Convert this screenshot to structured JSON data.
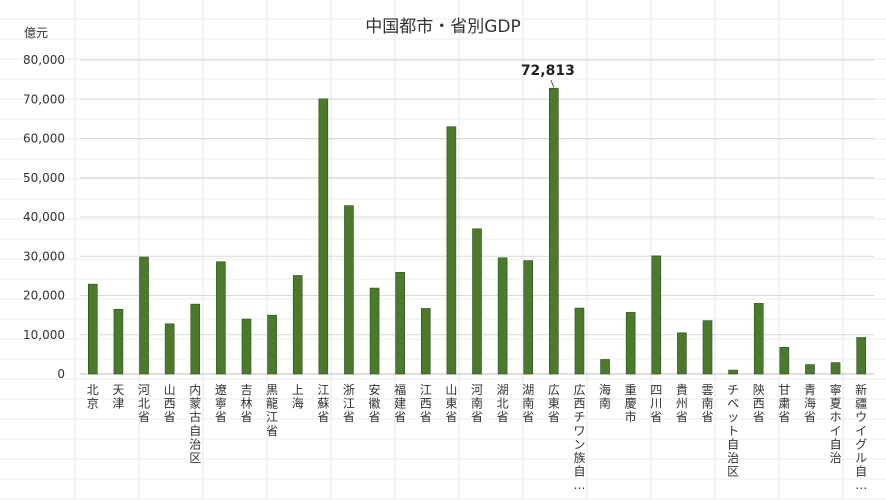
{
  "chart_data": {
    "type": "bar",
    "title": "中国都市・省別GDP",
    "unit_label": "億元",
    "ylim": [
      0,
      80000
    ],
    "yticks": [
      "0",
      "10,000",
      "20,000",
      "30,000",
      "40,000",
      "50,000",
      "60,000",
      "70,000",
      "80,000"
    ],
    "grid": true,
    "legend": "none",
    "bar_color": "#4c7a2c",
    "bar_edge_color": "#2f4f1a",
    "categories": [
      "北京",
      "天津",
      "河北省",
      "山西省",
      "内蒙古自治区",
      "遼寧省",
      "吉林省",
      "黒龍江省",
      "上海",
      "江蘇省",
      "浙江省",
      "安徽省",
      "福建省",
      "江西省",
      "山東省",
      "河南省",
      "湖北省",
      "湖南省",
      "広東省",
      "広西チワン族自…",
      "海南",
      "重慶市",
      "四川省",
      "貴州省",
      "雲南省",
      "チベット自治区",
      "陝西省",
      "甘粛省",
      "青海省",
      "寧夏ホイ自治",
      "新疆ウイグル自…"
    ],
    "values": [
      22900,
      16500,
      29800,
      12800,
      17800,
      28600,
      14000,
      15000,
      25100,
      70100,
      42900,
      21900,
      25900,
      16700,
      63000,
      37000,
      29600,
      28900,
      72813,
      16800,
      3700,
      15700,
      30100,
      10500,
      13600,
      1000,
      18000,
      6800,
      2400,
      2900,
      9300
    ],
    "annotations": [
      {
        "category": "広東省",
        "text": "72,813"
      }
    ]
  }
}
